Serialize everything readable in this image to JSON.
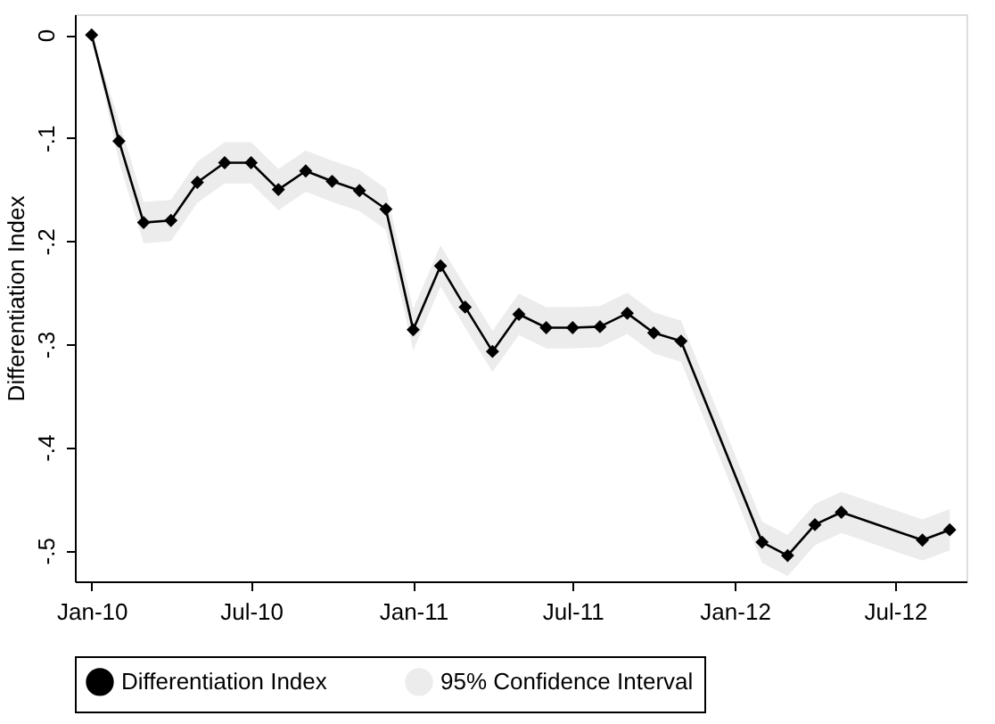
{
  "chart_data": {
    "type": "line",
    "ylabel": "Differentiation Index",
    "x": [
      "2010-01",
      "2010-02",
      "2010-03",
      "2010-04",
      "2010-05",
      "2010-06",
      "2010-07",
      "2010-08",
      "2010-09",
      "2010-10",
      "2010-11",
      "2010-12",
      "2011-01",
      "2011-02",
      "2011-03",
      "2011-04",
      "2011-05",
      "2011-06",
      "2011-07",
      "2011-08",
      "2011-09",
      "2011-10",
      "2011-11",
      "2012-02",
      "2012-03",
      "2012-04",
      "2012-05",
      "2012-08",
      "2012-09"
    ],
    "series": [
      {
        "name": "Differentiation Index",
        "color": "#000000",
        "marker": "diamond",
        "line_style": "solid",
        "values": [
          0,
          -0.103,
          -0.182,
          -0.18,
          -0.143,
          -0.124,
          -0.124,
          -0.15,
          -0.132,
          -0.142,
          -0.151,
          -0.169,
          -0.286,
          -0.224,
          -0.264,
          -0.307,
          -0.271,
          -0.284,
          -0.284,
          -0.283,
          -0.27,
          -0.289,
          -0.297,
          -0.492,
          -0.505,
          -0.475,
          -0.463,
          -0.49,
          -0.48
        ],
        "lower": [
          0,
          -0.123,
          -0.202,
          -0.2,
          -0.163,
          -0.144,
          -0.144,
          -0.17,
          -0.152,
          -0.162,
          -0.171,
          -0.189,
          -0.306,
          -0.244,
          -0.284,
          -0.327,
          -0.291,
          -0.304,
          -0.304,
          -0.303,
          -0.29,
          -0.309,
          -0.317,
          -0.512,
          -0.525,
          -0.495,
          -0.483,
          -0.51,
          -0.5
        ],
        "upper": [
          0,
          -0.083,
          -0.162,
          -0.16,
          -0.123,
          -0.104,
          -0.104,
          -0.13,
          -0.112,
          -0.122,
          -0.131,
          -0.149,
          -0.266,
          -0.204,
          -0.244,
          -0.287,
          -0.251,
          -0.264,
          -0.264,
          -0.263,
          -0.25,
          -0.269,
          -0.277,
          -0.472,
          -0.485,
          -0.455,
          -0.443,
          -0.47,
          -0.46
        ]
      },
      {
        "name": "95% Confidence Interval",
        "type": "area",
        "color": "#ececec",
        "values": [
          null,
          null,
          null,
          null,
          null,
          null,
          null,
          null,
          null,
          null,
          null,
          null,
          null,
          null,
          null,
          null,
          null,
          null,
          null,
          null,
          null,
          null,
          null,
          null,
          null,
          null,
          null,
          null,
          null
        ]
      }
    ],
    "xlim": [
      "2009-12-13",
      "2012-09-20"
    ],
    "xticks": [
      {
        "value": "2010-01",
        "label": "Jan-10"
      },
      {
        "value": "2010-07",
        "label": "Jul-10"
      },
      {
        "value": "2011-01",
        "label": "Jan-11"
      },
      {
        "value": "2011-07",
        "label": "Jul-11"
      },
      {
        "value": "2012-01",
        "label": "Jan-12"
      },
      {
        "value": "2012-07",
        "label": "Jul-12"
      }
    ],
    "ylim": [
      -0.53,
      0.02
    ],
    "yticks": [
      {
        "value": 0,
        "label": "0"
      },
      {
        "value": -0.1,
        "label": "-.1"
      },
      {
        "value": -0.2,
        "label": "-.2"
      },
      {
        "value": -0.3,
        "label": "-.3"
      },
      {
        "value": -0.4,
        "label": "-.4"
      },
      {
        "value": -0.5,
        "label": "-.5"
      }
    ],
    "grid": false,
    "legend": "bottom"
  }
}
